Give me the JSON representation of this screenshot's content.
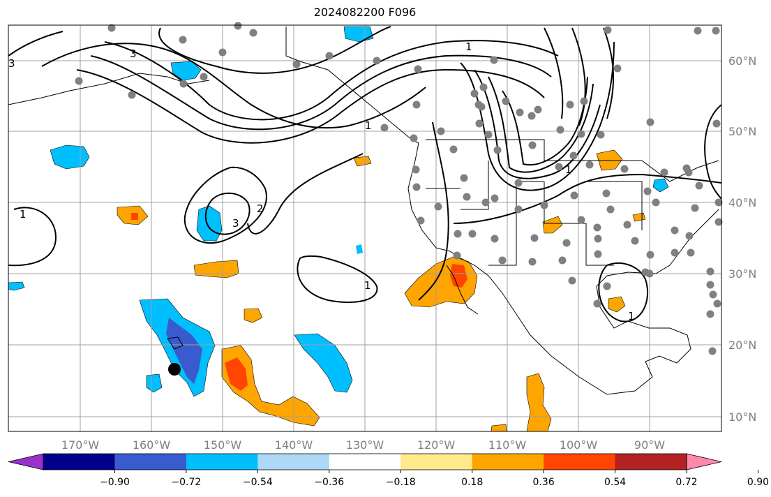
{
  "title": "2024082200 F096",
  "lon_labels": [
    "170°W",
    "160°W",
    "150°W",
    "140°W",
    "130°W",
    "120°W",
    "110°W",
    "100°W",
    "90°W"
  ],
  "lat_labels": [
    "60°N",
    "50°N",
    "40°N",
    "30°N",
    "20°N",
    "10°N"
  ],
  "colorbar": {
    "colors": [
      "#9932cc",
      "#00008b",
      "#3a5bcd",
      "#00bfff",
      "#add8f6",
      "#ffffff",
      "#ffe98a",
      "#ffa500",
      "#ff4500",
      "#b22222",
      "#ff88aa"
    ],
    "tick_labels": [
      "−0.90",
      "−0.72",
      "−0.54",
      "−0.36",
      "−0.18",
      "0.18",
      "0.36",
      "0.54",
      "0.72",
      "0.90"
    ]
  },
  "contour_labels": [
    "3",
    "3",
    "1",
    "1",
    "2",
    "3",
    "1",
    "1",
    "1",
    "1"
  ],
  "colors": {
    "land_line": "#000000",
    "grid": "#a0a0a0",
    "station": "#808080",
    "contour": "#000000"
  }
}
